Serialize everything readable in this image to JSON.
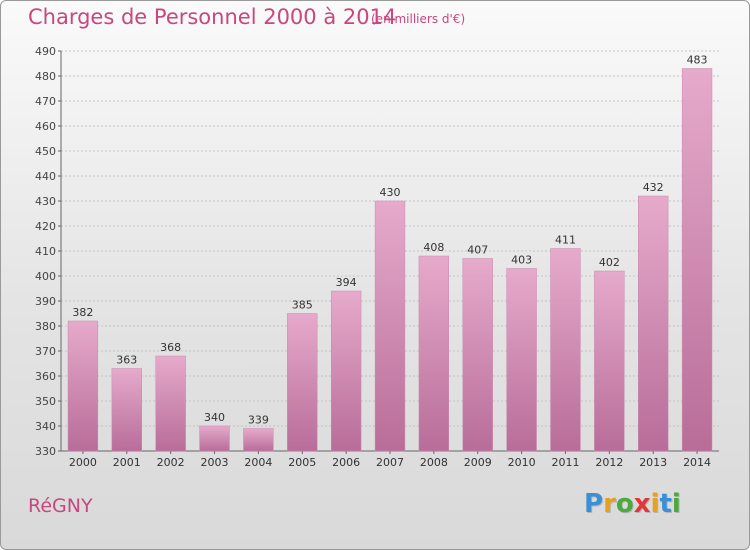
{
  "title": "Charges de Personnel 2000 à 2014",
  "subtitle": "(en milliers d'€)",
  "commune": "RéGNY",
  "logo": {
    "letters": [
      "P",
      "r",
      "o",
      "x",
      "i",
      "t",
      "i"
    ],
    "colors": [
      "#3a8fd6",
      "#e6a21f",
      "#4aaa3c",
      "#e2373a",
      "#e6a21f",
      "#3a8fd6",
      "#4aaa3c"
    ]
  },
  "colors": {
    "bar": "#d68fb8",
    "bar_light": "#e6aacb",
    "bar_dark": "#b86d99",
    "text": "#333333",
    "accent": "#c8477f"
  },
  "chart_data": {
    "type": "bar",
    "title": "Charges de Personnel 2000 à 2014",
    "subtitle": "(en milliers d'€)",
    "xlabel": "",
    "ylabel": "",
    "categories": [
      "2000",
      "2001",
      "2002",
      "2003",
      "2004",
      "2005",
      "2006",
      "2007",
      "2008",
      "2009",
      "2010",
      "2011",
      "2012",
      "2013",
      "2014"
    ],
    "values": [
      382,
      363,
      368,
      340,
      339,
      385,
      394,
      430,
      408,
      407,
      403,
      411,
      402,
      432,
      483
    ],
    "ylim": [
      330,
      490
    ],
    "yticks": [
      330,
      340,
      350,
      360,
      370,
      380,
      390,
      400,
      410,
      420,
      430,
      440,
      450,
      460,
      470,
      480,
      490
    ],
    "grid": true
  }
}
